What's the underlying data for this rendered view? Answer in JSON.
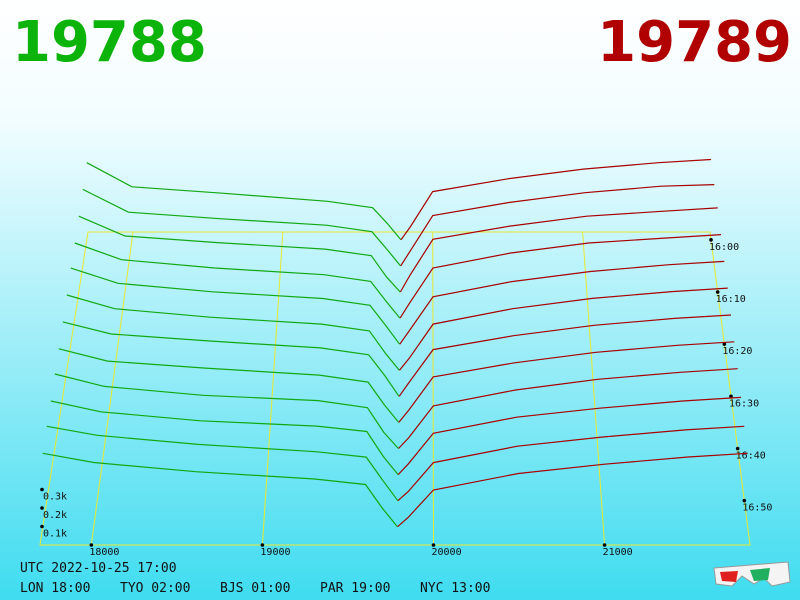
{
  "best_bid": 19788,
  "best_ask": 19789,
  "clock": {
    "utc": "UTC 2022-10-25 17:00",
    "cities": [
      "LON 18:00",
      "TYO 02:00",
      "BJS 01:00",
      "PAR 19:00",
      "NYC 13:00"
    ]
  },
  "chart_data": {
    "type": "depth3d",
    "xlim": [
      17700,
      21850
    ],
    "xticks": [
      18000,
      19000,
      20000,
      21000
    ],
    "zticks": [
      {
        "value": 0.1,
        "label": "0.1k"
      },
      {
        "value": 0.2,
        "label": "0.2k"
      },
      {
        "value": 0.3,
        "label": "0.3k"
      }
    ],
    "tlim": [
      -1.5,
      58.5
    ],
    "tticks": [
      {
        "value": 0,
        "label": "16:00"
      },
      {
        "value": 10,
        "label": "16:10"
      },
      {
        "value": 20,
        "label": "16:20"
      },
      {
        "value": 30,
        "label": "16:30"
      },
      {
        "value": 40,
        "label": "16:40"
      },
      {
        "value": 50,
        "label": "16:50"
      }
    ],
    "t": [
      0,
      5,
      10,
      15,
      20,
      25,
      30,
      35,
      40,
      45,
      50,
      55
    ],
    "series": [
      {
        "color": "#12a812",
        "x": [
          17700,
          18000,
          18600,
          19300,
          19600,
          19700,
          19788
        ],
        "values": [
          [
            0.48,
            0.33,
            0.29,
            0.24,
            0.2,
            0.1,
            0
          ],
          [
            0.47,
            0.33,
            0.29,
            0.25,
            0.21,
            0.1,
            0
          ],
          [
            0.46,
            0.34,
            0.3,
            0.26,
            0.22,
            0.09,
            0
          ],
          [
            0.45,
            0.35,
            0.3,
            0.26,
            0.22,
            0.1,
            0
          ],
          [
            0.45,
            0.36,
            0.31,
            0.27,
            0.23,
            0.11,
            0
          ],
          [
            0.44,
            0.36,
            0.31,
            0.27,
            0.23,
            0.1,
            0
          ],
          [
            0.43,
            0.36,
            0.32,
            0.28,
            0.24,
            0.12,
            0
          ],
          [
            0.42,
            0.35,
            0.31,
            0.27,
            0.23,
            0.1,
            0
          ],
          [
            0.42,
            0.35,
            0.3,
            0.27,
            0.23,
            0.09,
            0
          ],
          [
            0.41,
            0.35,
            0.3,
            0.27,
            0.24,
            0.1,
            0
          ],
          [
            0.41,
            0.36,
            0.31,
            0.27,
            0.24,
            0.11,
            0
          ],
          [
            0.4,
            0.35,
            0.3,
            0.26,
            0.23,
            0.1,
            0
          ]
        ]
      },
      {
        "color": "#a80000",
        "x": [
          19789,
          19850,
          20000,
          20500,
          21000,
          21500,
          21850
        ],
        "values": [
          [
            0,
            0.08,
            0.3,
            0.38,
            0.44,
            0.48,
            0.5
          ],
          [
            0,
            0.09,
            0.31,
            0.39,
            0.45,
            0.49,
            0.5
          ],
          [
            0,
            0.1,
            0.32,
            0.4,
            0.46,
            0.49,
            0.51
          ],
          [
            0,
            0.09,
            0.3,
            0.39,
            0.45,
            0.48,
            0.5
          ],
          [
            0,
            0.08,
            0.28,
            0.37,
            0.43,
            0.47,
            0.49
          ],
          [
            0,
            0.07,
            0.27,
            0.36,
            0.42,
            0.46,
            0.48
          ],
          [
            0,
            0.08,
            0.27,
            0.35,
            0.41,
            0.45,
            0.47
          ],
          [
            0,
            0.07,
            0.26,
            0.34,
            0.4,
            0.44,
            0.46
          ],
          [
            0,
            0.06,
            0.24,
            0.33,
            0.39,
            0.43,
            0.45
          ],
          [
            0,
            0.06,
            0.23,
            0.32,
            0.37,
            0.41,
            0.43
          ],
          [
            0,
            0.05,
            0.21,
            0.3,
            0.35,
            0.39,
            0.41
          ],
          [
            0,
            0.05,
            0.2,
            0.29,
            0.34,
            0.38,
            0.4
          ]
        ]
      }
    ]
  }
}
